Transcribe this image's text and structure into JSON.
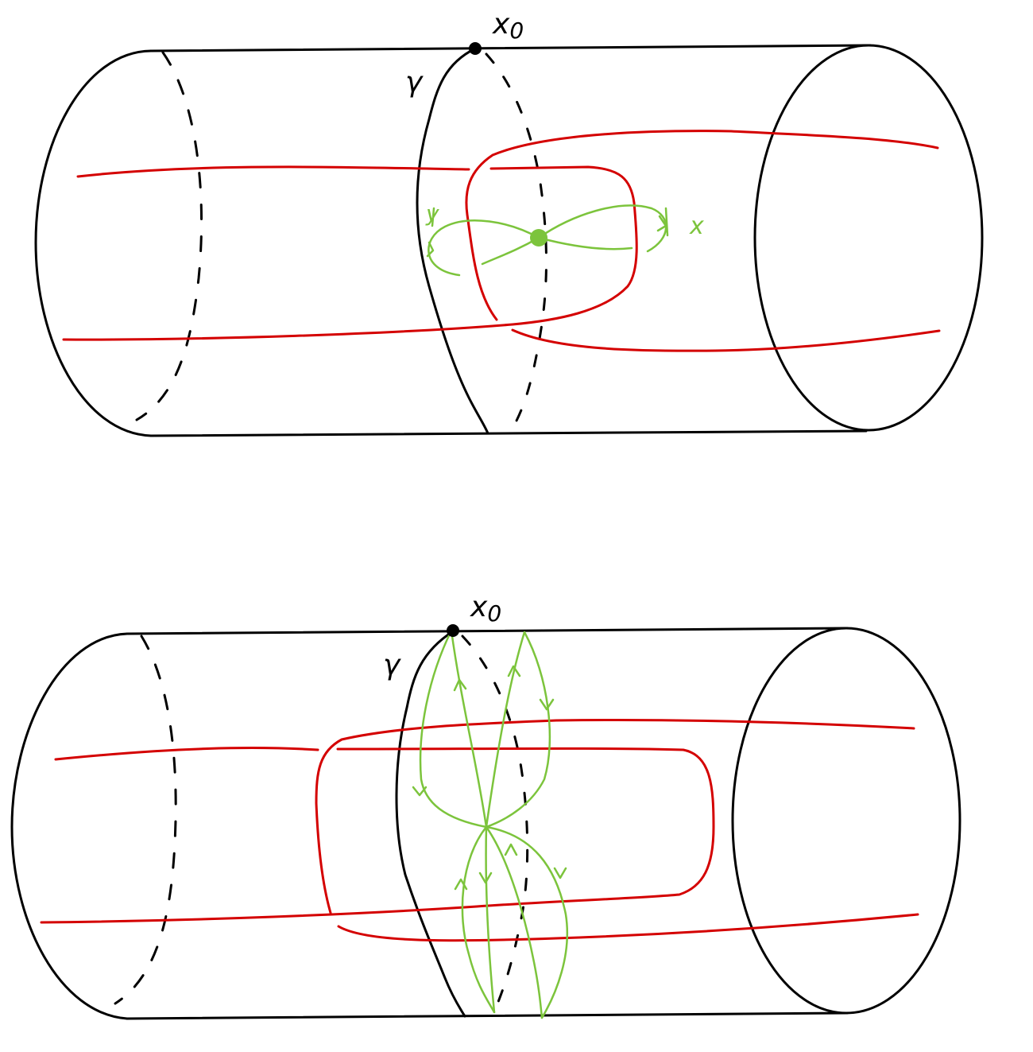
{
  "colors": {
    "ink": "#000000",
    "curve": "#d40000",
    "loop": "#7cc43c"
  },
  "figures": [
    {
      "id": "top",
      "basepoint_label": "x",
      "basepoint_subscript": "0",
      "gamma_label": "γ",
      "loop_labels": {
        "left": "y",
        "right": "x"
      }
    },
    {
      "id": "bottom",
      "basepoint_label": "x",
      "basepoint_subscript": "0",
      "gamma_label": "γ"
    }
  ]
}
